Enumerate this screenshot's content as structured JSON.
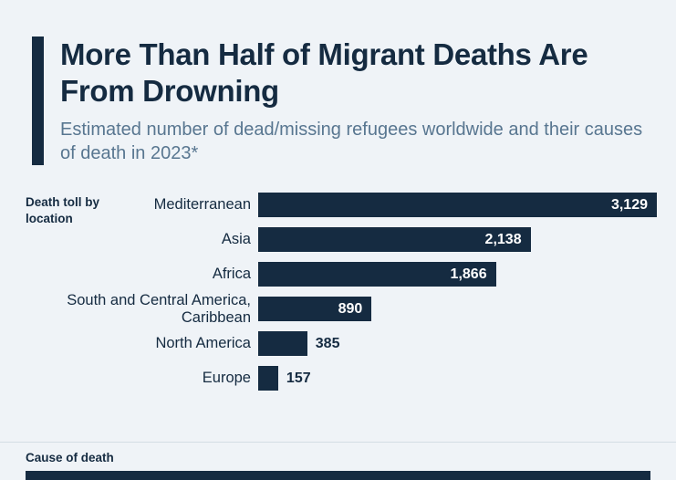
{
  "header": {
    "title": "More Than Half of Migrant Deaths Are From Drowning",
    "subtitle": "Estimated number of dead/missing refugees worldwide and their causes of death in 2023*"
  },
  "chart_data": {
    "type": "bar",
    "orientation": "horizontal",
    "section_label": "Death toll by location",
    "categories": [
      "Mediterranean",
      "Asia",
      "Africa",
      "South and Central America, Caribbean",
      "North America",
      "Europe"
    ],
    "values": [
      3129,
      2138,
      1866,
      890,
      385,
      157
    ],
    "value_labels": [
      "3,129",
      "2,138",
      "1,866",
      "890",
      "385",
      "157"
    ],
    "xlim": [
      0,
      3129
    ],
    "grid": false,
    "legend": "none",
    "title": "More Than Half of Migrant Deaths Are From Drowning",
    "xlabel": "",
    "ylabel": "Death toll by location",
    "colors": {
      "bar": "#152b41",
      "background": "#eff3f7",
      "title": "#152b41",
      "subtitle": "#587690",
      "value_inside": "#ffffff",
      "value_outside": "#152b41"
    }
  },
  "footer": {
    "label": "Cause of death"
  }
}
